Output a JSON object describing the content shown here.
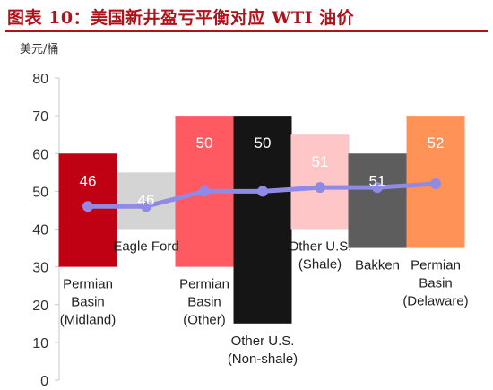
{
  "title": "图表 10：美国新井盈亏平衡对应 WTI 油价",
  "unit": "美元/桶",
  "colors": {
    "title": "#b0121b",
    "line": "#8f8ae6"
  },
  "chart_data": {
    "type": "bar",
    "title": "图表 10：美国新井盈亏平衡对应 WTI 油价",
    "ylabel": "美元/桶",
    "xlabel": "",
    "ylim": [
      0,
      80
    ],
    "yticks": [
      0,
      10,
      20,
      30,
      40,
      50,
      60,
      70,
      80
    ],
    "grid": false,
    "legend": "none",
    "categories": [
      "Permian Basin (Midland)",
      "Eagle Ford",
      "Permian Basin (Other)",
      "Other U.S. (Non-shale)",
      "Other U.S. (Shale)",
      "Bakken",
      "Permian Basin (Delaware)"
    ],
    "ranges": [
      {
        "low": 30,
        "high": 60
      },
      {
        "low": 40,
        "high": 55
      },
      {
        "low": 30,
        "high": 70
      },
      {
        "low": 15,
        "high": 70
      },
      {
        "low": 40,
        "high": 65
      },
      {
        "low": 35,
        "high": 60
      },
      {
        "low": 35,
        "high": 70
      }
    ],
    "values": [
      46,
      46,
      50,
      50,
      51,
      51,
      52
    ],
    "colors": [
      "#c00013",
      "#d4d4d4",
      "#ff5a62",
      "#151515",
      "#ffc6c8",
      "#5d5d5d",
      "#ff9256"
    ],
    "value_label_colors": [
      "#ffffff",
      "#ffffff",
      "#ffffff",
      "#ffffff",
      "#ffffff",
      "#ffffff",
      "#ffffff"
    ],
    "category_labels": [
      [
        "Permian",
        "Basin",
        "(Midland)"
      ],
      [
        "Eagle Ford"
      ],
      [
        "Permian",
        "Basin",
        "(Other)"
      ],
      [
        "Other U.S.",
        "(Non-shale)"
      ],
      [
        "Other U.S.",
        "(Shale)"
      ],
      [
        "Bakken"
      ],
      [
        "Permian",
        "Basin",
        "(Delaware)"
      ]
    ]
  }
}
